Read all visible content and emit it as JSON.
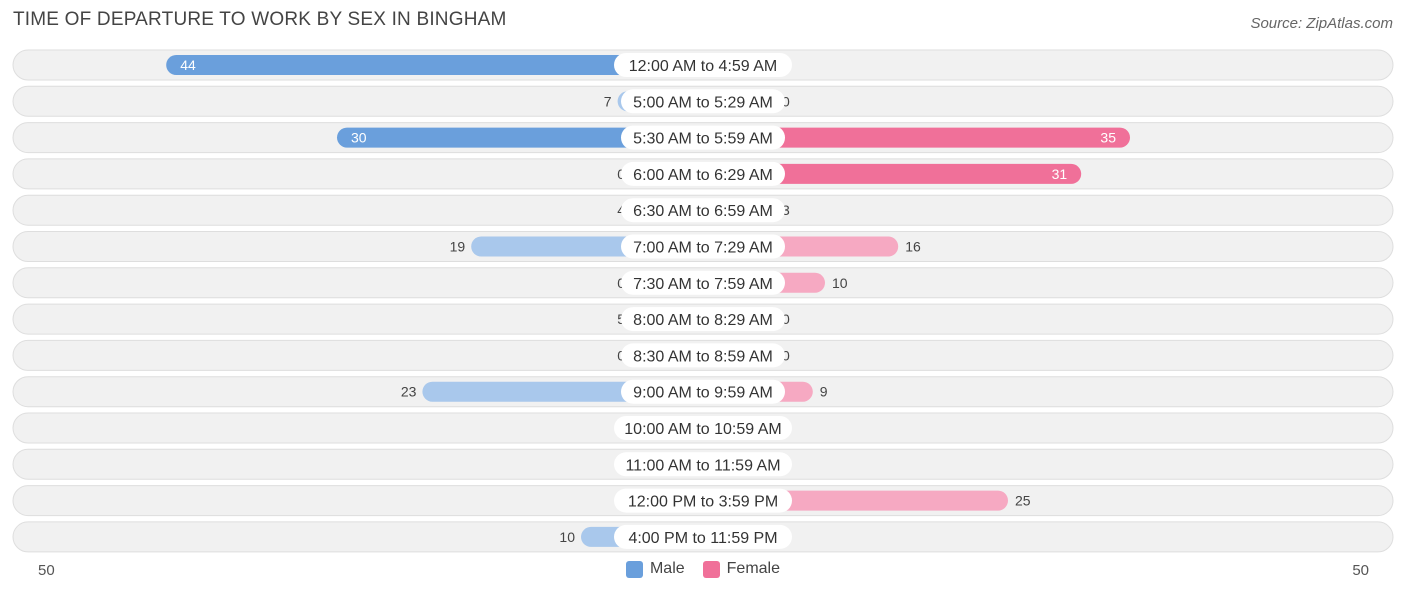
{
  "title": "TIME OF DEPARTURE TO WORK BY SEX IN BINGHAM",
  "source": "Source: ZipAtlas.com",
  "colors": {
    "male_strong": "#6a9fdc",
    "male_light": "#a9c8ec",
    "female_strong": "#f07099",
    "female_light": "#f6a9c2",
    "row_bg": "#f1f1f1",
    "row_border": "#dedede"
  },
  "legend": {
    "male": "Male",
    "female": "Female"
  },
  "axis": {
    "left_label": "50",
    "right_label": "50"
  },
  "chart_data": {
    "type": "bar",
    "orientation": "horizontal-diverging",
    "title": "TIME OF DEPARTURE TO WORK BY SEX IN BINGHAM",
    "xlim": [
      -50,
      50
    ],
    "categories": [
      "12:00 AM to 4:59 AM",
      "5:00 AM to 5:29 AM",
      "5:30 AM to 5:59 AM",
      "6:00 AM to 6:29 AM",
      "6:30 AM to 6:59 AM",
      "7:00 AM to 7:29 AM",
      "7:30 AM to 7:59 AM",
      "8:00 AM to 8:29 AM",
      "8:30 AM to 8:59 AM",
      "9:00 AM to 9:59 AM",
      "10:00 AM to 10:59 AM",
      "11:00 AM to 11:59 AM",
      "12:00 PM to 3:59 PM",
      "4:00 PM to 11:59 PM"
    ],
    "series": [
      {
        "name": "Male",
        "values": [
          44,
          7,
          30,
          0,
          4,
          19,
          0,
          5,
          0,
          23,
          0,
          0,
          0,
          10
        ]
      },
      {
        "name": "Female",
        "values": [
          0,
          0,
          35,
          31,
          3,
          16,
          10,
          0,
          0,
          9,
          0,
          0,
          25,
          0
        ]
      }
    ],
    "legend_position": "bottom-center",
    "grid": false
  }
}
